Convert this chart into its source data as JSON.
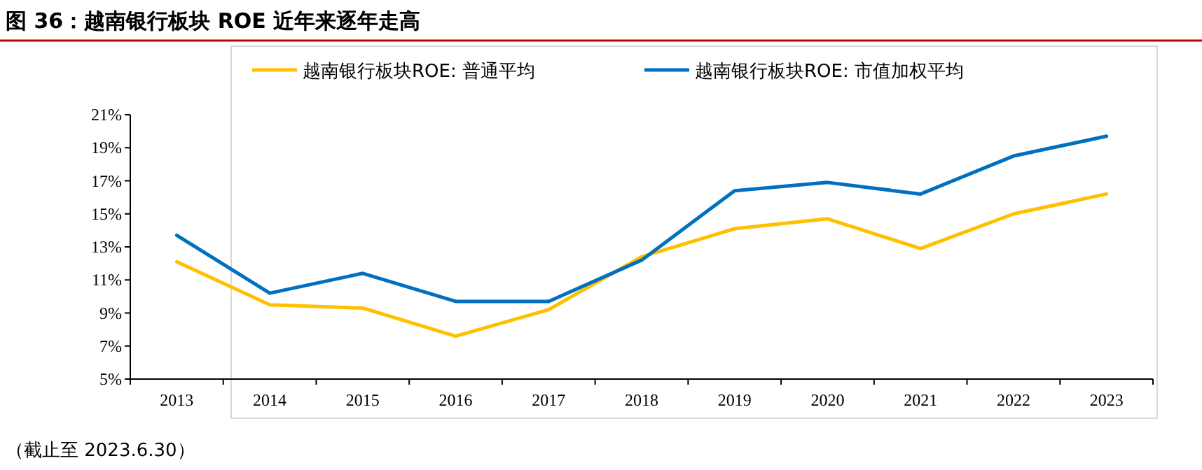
{
  "chart_data": {
    "type": "line",
    "title": "图 36：越南银行板块 ROE 近年来逐年走高",
    "categories": [
      "2013",
      "2014",
      "2015",
      "2016",
      "2017",
      "2018",
      "2019",
      "2020",
      "2021",
      "2022",
      "2023"
    ],
    "series": [
      {
        "name": "越南银行板块ROE: 普通平均",
        "color": "#ffc000",
        "values": [
          12.1,
          9.5,
          9.3,
          7.6,
          9.2,
          12.4,
          14.1,
          14.7,
          12.9,
          15.0,
          16.2
        ]
      },
      {
        "name": "越南银行板块ROE: 市值加权平均",
        "color": "#0070c0",
        "values": [
          13.7,
          10.2,
          11.4,
          9.7,
          9.7,
          12.2,
          16.4,
          16.9,
          16.2,
          18.5,
          19.7
        ]
      }
    ],
    "ylim": [
      5,
      21
    ],
    "yticks": [
      {
        "value": 5,
        "label": "5%"
      },
      {
        "value": 7,
        "label": "7%"
      },
      {
        "value": 9,
        "label": "9%"
      },
      {
        "value": 11,
        "label": "11%"
      },
      {
        "value": 13,
        "label": "13%"
      },
      {
        "value": 15,
        "label": "15%"
      },
      {
        "value": 17,
        "label": "17%"
      },
      {
        "value": 19,
        "label": "19%"
      },
      {
        "value": 21,
        "label": "21%"
      }
    ],
    "legend": "top",
    "annotations": [
      "（截止至 2023.6.30）"
    ]
  }
}
